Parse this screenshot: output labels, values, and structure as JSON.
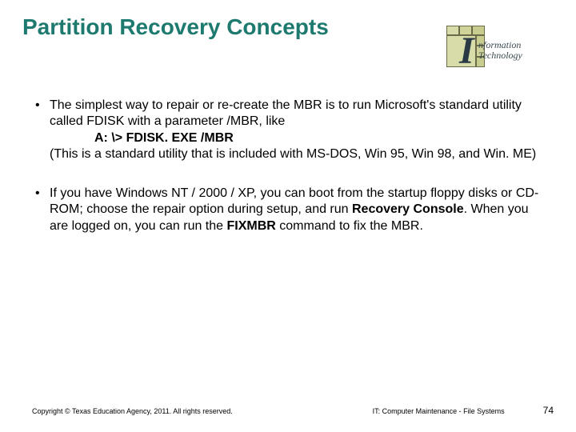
{
  "title": "Partition Recovery Concepts",
  "title_color": "#1e7a6f",
  "logo": {
    "i_letter": "I",
    "line1": "nformation",
    "line2": "Technology",
    "grid_fills": [
      "#d8dca8",
      "#d0d49a",
      "#c8cc8e",
      "#d8dca8",
      "#c8cc8e",
      "#d0d49a",
      "#c8cc8e"
    ],
    "text_color": "#3a4a52",
    "i_color": "#2a3a44"
  },
  "bullets": [
    {
      "pre": "The simplest way to repair or re-create the MBR is to run Microsoft's standard utility called FDISK with a parameter /MBR, like",
      "cmd": "A: \\> FDISK. EXE /MBR",
      "post": "(This is a standard utility that is included with MS-DOS, Win 95, Win 98, and Win. ME)"
    },
    {
      "p1": "If you have Windows NT / 2000 / XP, you can boot from the startup floppy disks or CD-ROM; choose the repair option during setup, and run ",
      "b1": "Recovery Console",
      "p2": ". When you are logged on, you can run the ",
      "b2": "FIXMBR",
      "p3": " command to fix the MBR."
    }
  ],
  "footer": {
    "left": "Copyright © Texas Education Agency, 2011. All rights reserved.",
    "center": "IT: Computer Maintenance - File Systems",
    "page": "74"
  },
  "colors": {
    "text": "#000000",
    "background": "#ffffff"
  }
}
